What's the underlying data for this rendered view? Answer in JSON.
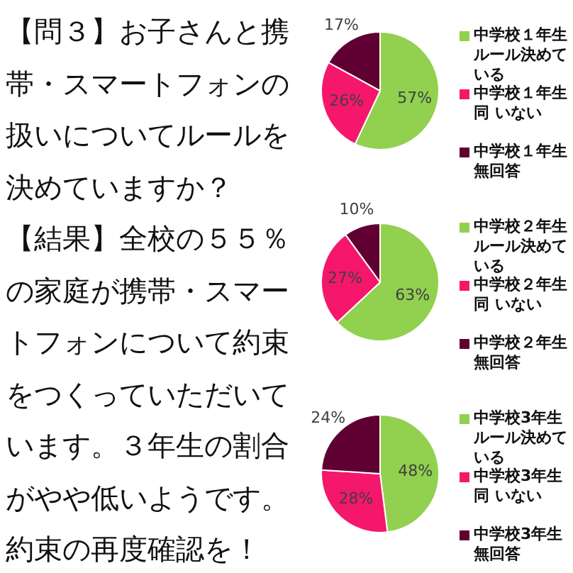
{
  "chart_data": [
    {
      "type": "other",
      "title": "【問３】お子さんと携帯・スマートフォンの扱いについてルールを決めていますか？",
      "annotations": [
        "【結果】全校の５５％の家庭が携帯・スマートフォンについて約束をつくっていただいています。３年生の割合がやや低いようです。約束の再度確認を！"
      ]
    },
    {
      "type": "pie",
      "categories": [
        "中学校１年生ルール決めている",
        "中学校１年生同 いない",
        "中学校１年生無回答"
      ],
      "values": [
        57,
        26,
        17
      ],
      "colors": [
        "#92d050",
        "#f5176b",
        "#600032"
      ],
      "value_labels": [
        "57%",
        "26%",
        "17%"
      ],
      "legend": "right"
    },
    {
      "type": "pie",
      "categories": [
        "中学校２年生ルール決めている",
        "中学校２年生同 いない",
        "中学校２年生無回答"
      ],
      "values": [
        63,
        27,
        10
      ],
      "colors": [
        "#92d050",
        "#f5176b",
        "#600032"
      ],
      "value_labels": [
        "63%",
        "27%",
        "10%"
      ],
      "legend": "right"
    },
    {
      "type": "pie",
      "categories": [
        "中学校3年生ルール決めている",
        "中学校3年生同 いない",
        "中学校3年生無回答"
      ],
      "values": [
        48,
        28,
        24
      ],
      "colors": [
        "#92d050",
        "#f5176b",
        "#600032"
      ],
      "value_labels": [
        "48%",
        "28%",
        "24%"
      ],
      "legend": "right"
    }
  ]
}
